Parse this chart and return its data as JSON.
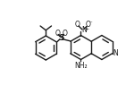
{
  "bg_color": "#ffffff",
  "line_color": "#1a1a1a",
  "lw": 1.0,
  "figsize": [
    1.41,
    1.05
  ],
  "dpi": 100,
  "xlim": [
    0,
    14
  ],
  "ylim": [
    0,
    10.5
  ]
}
